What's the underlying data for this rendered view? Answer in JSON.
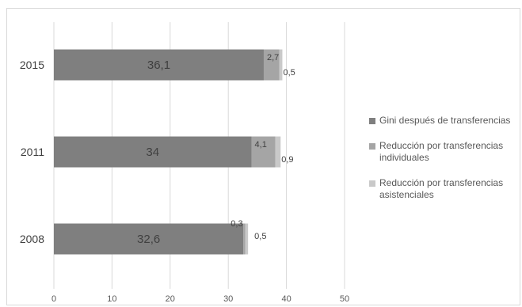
{
  "chart_data": {
    "type": "bar",
    "orientation": "horizontal",
    "stacked": true,
    "categories": [
      "2015",
      "2011",
      "2008"
    ],
    "series": [
      {
        "name": "Gini después de transferencias",
        "values": [
          36.1,
          34,
          32.6
        ],
        "labels": [
          "36,1",
          "34",
          "32,6"
        ],
        "color": "#7f7f7f"
      },
      {
        "name": "Reducción por transferencias individuales",
        "values": [
          2.7,
          4.1,
          0.3
        ],
        "labels": [
          "2,7",
          "4,1",
          "0,3"
        ],
        "color": "#a5a5a5"
      },
      {
        "name": "Reducción por transferencias asistenciales",
        "values": [
          0.5,
          0.9,
          0.5
        ],
        "labels": [
          "0,5",
          "0,9",
          "0,5"
        ],
        "color": "#c9c9c9"
      }
    ],
    "x_ticks": [
      "0",
      "10",
      "20",
      "30",
      "40",
      "50"
    ],
    "xlim": [
      0,
      50
    ],
    "grid": true,
    "legend_position": "right"
  }
}
